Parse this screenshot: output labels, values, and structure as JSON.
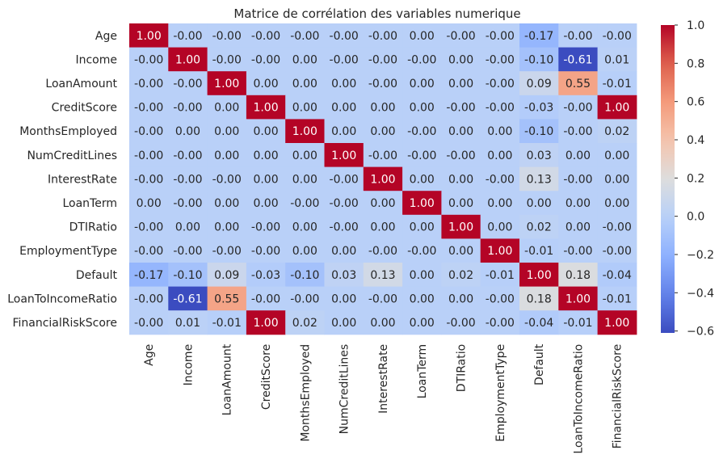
{
  "chart_data": {
    "type": "heatmap",
    "title": "Matrice de corrélation des variables numerique",
    "xlabel": "",
    "ylabel": "",
    "rows": [
      "Age",
      "Income",
      "LoanAmount",
      "CreditScore",
      "MonthsEmployed",
      "NumCreditLines",
      "InterestRate",
      "LoanTerm",
      "DTIRatio",
      "EmploymentType",
      "Default",
      "LoanToIncomeRatio",
      "FinancialRiskScore"
    ],
    "columns": [
      "Age",
      "Income",
      "LoanAmount",
      "CreditScore",
      "MonthsEmployed",
      "NumCreditLines",
      "InterestRate",
      "LoanTerm",
      "DTIRatio",
      "EmploymentType",
      "Default",
      "LoanToIncomeRatio",
      "FinancialRiskScore"
    ],
    "values": [
      [
        1.0,
        -0.0,
        -0.0,
        -0.0,
        -0.0,
        -0.0,
        -0.0,
        0.0,
        -0.0,
        -0.0,
        -0.17,
        -0.0,
        -0.0
      ],
      [
        -0.0,
        1.0,
        -0.0,
        -0.0,
        0.0,
        -0.0,
        -0.0,
        -0.0,
        0.0,
        -0.0,
        -0.1,
        -0.61,
        0.01
      ],
      [
        -0.0,
        -0.0,
        1.0,
        0.0,
        0.0,
        0.0,
        -0.0,
        0.0,
        0.0,
        -0.0,
        0.09,
        0.55,
        -0.01
      ],
      [
        -0.0,
        -0.0,
        0.0,
        1.0,
        0.0,
        0.0,
        0.0,
        0.0,
        -0.0,
        -0.0,
        -0.03,
        -0.0,
        1.0
      ],
      [
        -0.0,
        0.0,
        0.0,
        0.0,
        1.0,
        0.0,
        0.0,
        -0.0,
        0.0,
        0.0,
        -0.1,
        -0.0,
        0.02
      ],
      [
        -0.0,
        -0.0,
        0.0,
        0.0,
        0.0,
        1.0,
        -0.0,
        -0.0,
        -0.0,
        0.0,
        0.03,
        0.0,
        0.0
      ],
      [
        -0.0,
        -0.0,
        -0.0,
        0.0,
        0.0,
        -0.0,
        1.0,
        0.0,
        0.0,
        -0.0,
        0.13,
        -0.0,
        0.0
      ],
      [
        0.0,
        -0.0,
        0.0,
        0.0,
        -0.0,
        -0.0,
        0.0,
        1.0,
        0.0,
        0.0,
        0.0,
        0.0,
        0.0
      ],
      [
        -0.0,
        0.0,
        0.0,
        -0.0,
        0.0,
        -0.0,
        0.0,
        0.0,
        1.0,
        0.0,
        0.02,
        0.0,
        -0.0
      ],
      [
        -0.0,
        -0.0,
        -0.0,
        -0.0,
        0.0,
        0.0,
        -0.0,
        -0.0,
        0.0,
        1.0,
        -0.01,
        -0.0,
        -0.0
      ],
      [
        -0.17,
        -0.1,
        0.09,
        -0.03,
        -0.1,
        0.03,
        0.13,
        0.0,
        0.02,
        -0.01,
        1.0,
        0.18,
        -0.04
      ],
      [
        -0.0,
        -0.61,
        0.55,
        -0.0,
        -0.0,
        0.0,
        -0.0,
        0.0,
        0.0,
        -0.0,
        0.18,
        1.0,
        -0.01
      ],
      [
        -0.0,
        0.01,
        -0.01,
        1.0,
        0.02,
        0.0,
        0.0,
        0.0,
        -0.0,
        -0.0,
        -0.04,
        -0.01,
        1.0
      ]
    ],
    "colormap": "coolwarm",
    "colorbar": {
      "min": -0.61,
      "max": 1.0,
      "ticks": [
        "1.0",
        "0.8",
        "0.6",
        "0.4",
        "0.2",
        "0.0",
        "−0.2",
        "−0.4",
        "−0.6"
      ],
      "tick_values": [
        1.0,
        0.8,
        0.6,
        0.4,
        0.2,
        0.0,
        -0.2,
        -0.4,
        -0.6
      ]
    },
    "grid": false,
    "annotations_format": "0.00"
  }
}
